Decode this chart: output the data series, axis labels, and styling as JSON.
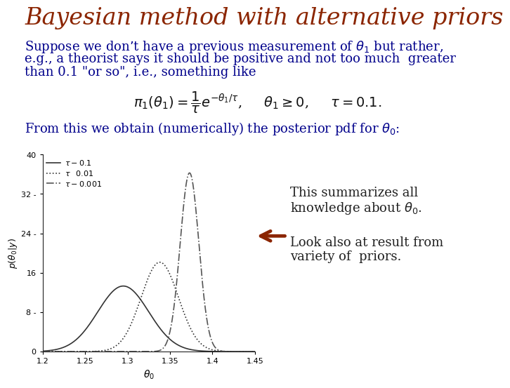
{
  "title": "Bayesian method with alternative priors",
  "title_color": "#8B2500",
  "title_fontsize": 24,
  "body_color": "#00008B",
  "body_fontsize": 13,
  "background_color": "#FFFFFF",
  "line1": "Suppose we don’t have a previous measurement of $\\theta_1$ but rather,",
  "line2": "e.g., a theorist says it should be positive and not too much  greater",
  "line3": "than 0.1 \"or so\", i.e., something like",
  "formula": "$\\pi_1(\\theta_1) = \\dfrac{1}{\\tau}e^{-\\theta_1/\\tau}$,     $\\theta_1 \\geq 0$,     $\\tau = 0.1$.",
  "formula_fontsize": 14,
  "from_text": "From this we obtain (numerically) the posterior pdf for $\\theta_0$:",
  "plot_xlim": [
    1.2,
    1.45
  ],
  "plot_ylim": [
    0,
    40
  ],
  "plot_xticks": [
    1.2,
    1.25,
    1.3,
    1.35,
    1.4,
    1.45
  ],
  "plot_yticks": [
    0,
    8,
    16,
    24,
    32,
    40
  ],
  "plot_xlabel": "$\\theta_0$",
  "plot_ylabel": "$p(\\theta_0|y)$",
  "curves": [
    {
      "mu": 1.295,
      "sigma": 0.03,
      "linestyle": "-",
      "color": "#333333",
      "label": "$\\tau - 0.1$"
    },
    {
      "mu": 1.338,
      "sigma": 0.022,
      "linestyle": ":",
      "color": "#333333",
      "label": "$\\tau \\;\\; 0.01$"
    },
    {
      "mu": 1.373,
      "sigma": 0.011,
      "linestyle": "-.",
      "color": "#555555",
      "label": "$\\tau - 0.001$"
    }
  ],
  "arrow_text1": "This summarizes all",
  "arrow_text2": "knowledge about $\\theta_0$.",
  "arrow_text3": "Look also at result from",
  "arrow_text4": "variety of  priors.",
  "text_color": "#202020",
  "text_fontsize": 13,
  "arrow_color": "#8B2500"
}
